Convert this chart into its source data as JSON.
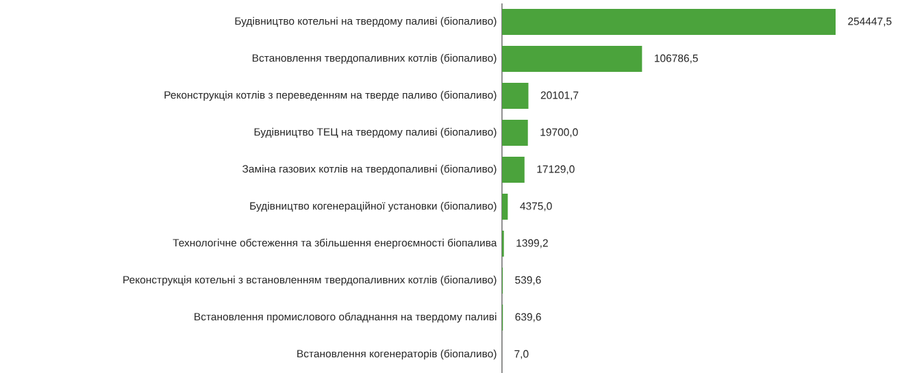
{
  "chart_data": {
    "type": "bar",
    "orientation": "horizontal",
    "categories": [
      "Будівництво котельні на твердому паливі (біопаливо)",
      "Встановлення твердопаливних котлів (біопаливо)",
      "Реконструкція котлів з переведенням на тверде паливо (біопаливо)",
      "Будівництво ТЕЦ на твердому паливі (біопаливо)",
      "Заміна газових котлів на твердопаливні (біопаливо)",
      "Будівництво когенераційної установки (біопаливо)",
      "Технологічне обстеження та збільшення енергоємності біопалива",
      "Реконструкція котельні з встановленням твердопаливних котлів (біопаливо)",
      "Встановлення промислового обладнання на твердому паливі",
      "Встановлення когенераторів (біопаливо)"
    ],
    "values": [
      254447.5,
      106786.5,
      20101.7,
      19700.0,
      17129.0,
      4375.0,
      1399.2,
      539.6,
      639.6,
      7.0
    ],
    "value_labels": [
      "254447,5",
      "106786,5",
      "20101,7",
      "19700,0",
      "17129,0",
      "4375,0",
      "1399,2",
      "539,6",
      "639,6",
      "7,0"
    ],
    "color": "#4ba33c"
  }
}
